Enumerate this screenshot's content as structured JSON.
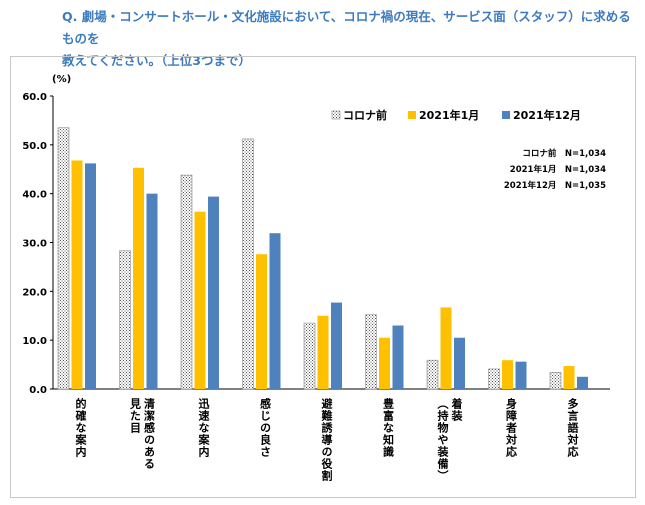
{
  "question_line1": "Q. 劇場・コンサートホール・文化施設において、コロナ禍の現在、サービス面（スタッフ）に求めるものを",
  "question_line2": "教えてください。（上位3つまで）",
  "chart_data": {
    "type": "bar",
    "unit_label": "(%)",
    "ylim": [
      0,
      60
    ],
    "yticks": [
      "0.0",
      "10.0",
      "20.0",
      "30.0",
      "40.0",
      "50.0",
      "60.0"
    ],
    "categories": [
      [
        "的確な案内"
      ],
      [
        "清潔感のある",
        "見た目"
      ],
      [
        "迅速な案内"
      ],
      [
        "感じの良さ"
      ],
      [
        "避難誘導の役割"
      ],
      [
        "豊富な知識"
      ],
      [
        "着装",
        "（持物や装備）"
      ],
      [
        "身障者対応"
      ],
      [
        "多言語対応"
      ]
    ],
    "series": [
      {
        "name": "コロナ前",
        "color": "#ffffff",
        "values": [
          53.5,
          28.3,
          43.8,
          51.2,
          13.5,
          15.2,
          5.9,
          4.1,
          3.4
        ]
      },
      {
        "name": "2021年1月",
        "color": "#ffc000",
        "values": [
          46.8,
          45.3,
          36.3,
          27.6,
          15.0,
          10.5,
          16.7,
          5.9,
          4.7
        ]
      },
      {
        "name": "2021年12月",
        "color": "#4f81bd",
        "values": [
          46.2,
          40.0,
          39.4,
          31.9,
          17.7,
          13.0,
          10.5,
          5.6,
          2.5
        ]
      }
    ],
    "sample_sizes": [
      "コロナ前　N=1,034",
      "2021年1月　N=1,034",
      "2021年12月　N=1,035"
    ]
  }
}
